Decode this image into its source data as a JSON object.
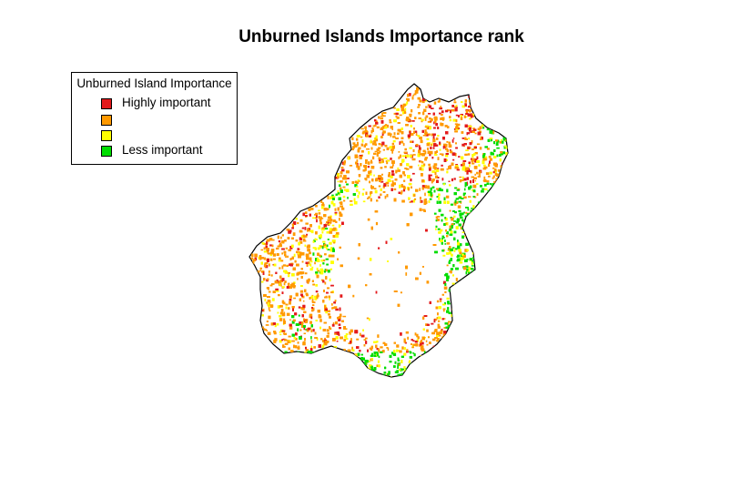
{
  "title": "Unburned Islands Importance rank",
  "legend": {
    "title": "Unburned Island Importance",
    "items": [
      {
        "label": "Highly important",
        "color": "#e31a1c"
      },
      {
        "label": "",
        "color": "#ff9900"
      },
      {
        "label": "",
        "color": "#ffff00"
      },
      {
        "label": "Less important",
        "color": "#00dd00"
      }
    ]
  },
  "colors": {
    "red": "#e31a1c",
    "orange": "#ff9900",
    "yellow": "#ffff00",
    "green": "#00dd00",
    "outline": "#000000"
  }
}
